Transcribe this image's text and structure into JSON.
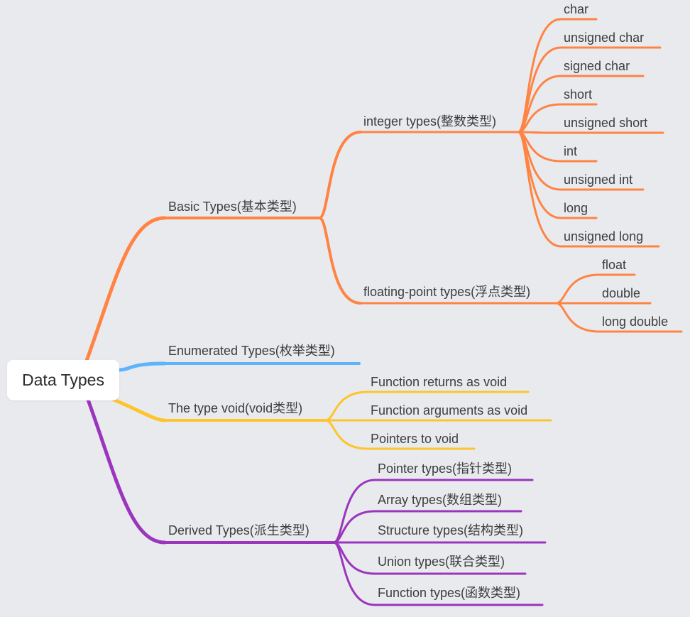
{
  "root": {
    "label": "Data Types"
  },
  "colors": {
    "basic": "#ff8444",
    "enum": "#5db4fb",
    "void": "#fdc42c",
    "derived": "#9b35bd",
    "background": "#e9eaee"
  },
  "branches": {
    "basic": {
      "label": "Basic Types(基本类型)",
      "integer": {
        "label": "integer types(整数类型)",
        "items": [
          "char",
          "unsigned char",
          "signed char",
          "short",
          "unsigned short",
          "int",
          "unsigned int",
          "long",
          "unsigned long"
        ]
      },
      "floating": {
        "label": "floating-point types(浮点类型)",
        "items": [
          "float",
          "double",
          "long double"
        ]
      }
    },
    "enum": {
      "label": "Enumerated Types(枚举类型)"
    },
    "void": {
      "label": "The type void(void类型)",
      "items": [
        "Function returns as void",
        "Function arguments as void",
        "Pointers to void"
      ]
    },
    "derived": {
      "label": "Derived Types(派生类型)",
      "items": [
        "Pointer types(指针类型)",
        "Array types(数组类型)",
        "Structure types(结构类型)",
        "Union types(联合类型)",
        "Function types(函数类型)"
      ]
    }
  }
}
